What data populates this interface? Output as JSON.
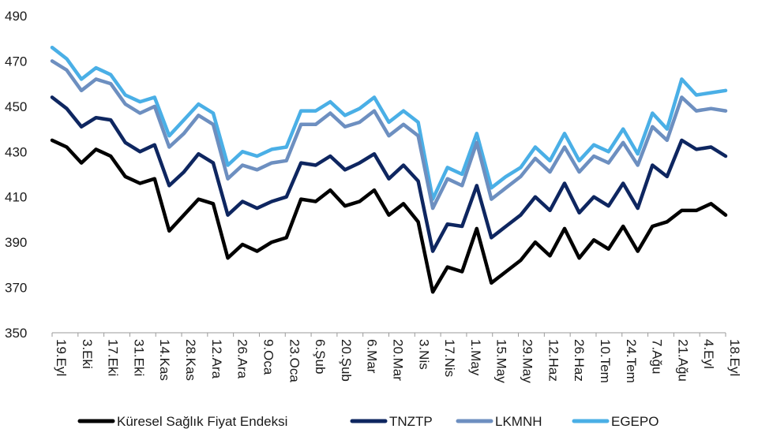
{
  "chart_data": {
    "type": "line",
    "title": "",
    "xlabel": "",
    "ylabel": "",
    "ylim": [
      350,
      490
    ],
    "yticks": [
      350,
      370,
      390,
      410,
      430,
      450,
      470,
      490
    ],
    "grid": false,
    "legend_position": "bottom",
    "x_tick_labels": [
      "19.Eyl",
      "3.Eki",
      "17.Eki",
      "31.Eki",
      "14.Kas",
      "28.Kas",
      "12.Ara",
      "26.Ara",
      "9.Oca",
      "23.Oca",
      "6.Şub",
      "20.Şub",
      "6.Mar",
      "20.Mar",
      "3.Nis",
      "17.Nis",
      "1.May",
      "15.May",
      "29.May",
      "12.Haz",
      "26.Haz",
      "10.Tem",
      "24.Tem",
      "7.Ağu",
      "21.Ağu",
      "4.Eyl",
      "18.Eyl"
    ],
    "series": [
      {
        "name": "Küresel Sağlık Fiyat Endeksi",
        "color": "#000000",
        "values": [
          435,
          432,
          425,
          431,
          428,
          419,
          416,
          418,
          395,
          402,
          409,
          407,
          383,
          389,
          386,
          390,
          392,
          409,
          408,
          413,
          406,
          408,
          413,
          402,
          407,
          399,
          368,
          379,
          377,
          396,
          372,
          377,
          382,
          390,
          384,
          396,
          383,
          391,
          387,
          397,
          386,
          397,
          399,
          404,
          404,
          407,
          402
        ]
      },
      {
        "name": "TNZTP",
        "color": "#0e2660",
        "values": [
          454,
          449,
          441,
          445,
          444,
          434,
          430,
          433,
          415,
          421,
          429,
          425,
          402,
          408,
          405,
          408,
          410,
          425,
          424,
          428,
          422,
          425,
          429,
          418,
          424,
          417,
          386,
          398,
          397,
          415,
          392,
          397,
          402,
          410,
          404,
          416,
          403,
          410,
          406,
          416,
          405,
          424,
          419,
          435,
          431,
          432,
          428
        ]
      },
      {
        "name": "LKMNH",
        "color": "#6d8fc0",
        "values": [
          470,
          466,
          457,
          462,
          460,
          451,
          447,
          450,
          432,
          438,
          446,
          442,
          418,
          424,
          422,
          425,
          426,
          442,
          442,
          447,
          441,
          443,
          448,
          437,
          442,
          437,
          405,
          418,
          415,
          434,
          409,
          414,
          419,
          427,
          421,
          432,
          421,
          428,
          425,
          434,
          424,
          441,
          435,
          454,
          448,
          449,
          448
        ]
      },
      {
        "name": "EGEPO",
        "color": "#4aafe6",
        "values": [
          476,
          471,
          462,
          467,
          464,
          455,
          452,
          454,
          437,
          444,
          451,
          447,
          424,
          430,
          428,
          431,
          432,
          448,
          448,
          452,
          446,
          449,
          454,
          443,
          448,
          443,
          409,
          423,
          420,
          438,
          414,
          419,
          423,
          432,
          426,
          438,
          426,
          433,
          430,
          440,
          429,
          447,
          440,
          462,
          455,
          456,
          457
        ]
      }
    ]
  }
}
